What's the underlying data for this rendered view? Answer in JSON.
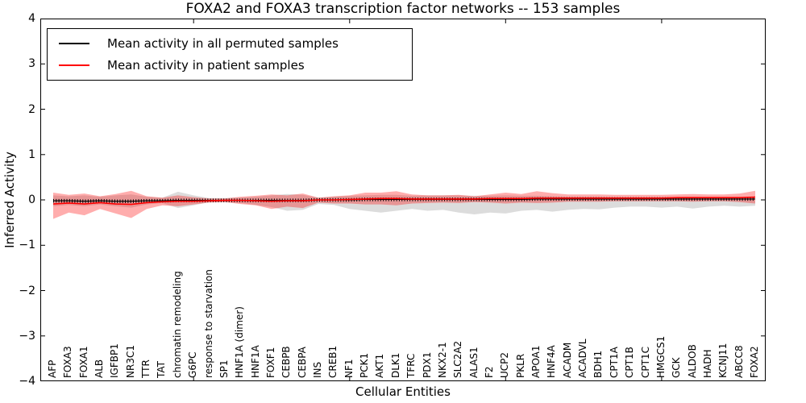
{
  "chart_data": {
    "type": "line",
    "title": "FOXA2 and FOXA3 transcription factor networks -- 153 samples",
    "xlabel": "Cellular Entities",
    "ylabel": "Inferred Activity",
    "ylim": [
      -4,
      4
    ],
    "yticks": [
      "4",
      "3",
      "2",
      "1",
      "0",
      "−1",
      "−2",
      "−3",
      "−4"
    ],
    "ytick_values": [
      4,
      3,
      2,
      1,
      0,
      -1,
      -2,
      -3,
      -4
    ],
    "xtick_indices": [
      9,
      19,
      29,
      39
    ],
    "grid": false,
    "legend_position": "upper left",
    "categories": [
      "AFP",
      "FOXA3",
      "FOXA1",
      "ALB",
      "IGFBP1",
      "NR3C1",
      "TTR",
      "TAT",
      "chromatin remodeling",
      "G6PC",
      "response to starvation",
      "SP1",
      "HNF1A (dimer)",
      "HNF1A",
      "FOXF1",
      "CEBPB",
      "CEBPA",
      "INS",
      "CREB1",
      "NF1",
      "PCK1",
      "AKT1",
      "DLK1",
      "TFRC",
      "PDX1",
      "NKX2-1",
      "SLC2A2",
      "ALAS1",
      "F2",
      "UCP2",
      "PKLR",
      "APOA1",
      "HNF4A",
      "ACADM",
      "ACADVL",
      "BDH1",
      "CPT1A",
      "CPT1B",
      "CPT1C",
      "HMGCS1",
      "GCK",
      "ALDOB",
      "HADH",
      "KCNJ11",
      "ABCC8",
      "FOXA2"
    ],
    "series": [
      {
        "name": "Mean activity in all permuted samples",
        "color": "#000000",
        "band_color": "#808080",
        "band_opacity": 0.28,
        "mean": [
          -0.02,
          -0.02,
          -0.03,
          -0.02,
          -0.03,
          -0.03,
          -0.02,
          -0.02,
          -0.01,
          -0.01,
          -0.01,
          -0.01,
          -0.01,
          -0.01,
          -0.01,
          -0.01,
          -0.01,
          0,
          0,
          0,
          0.01,
          0.01,
          0.01,
          0.01,
          0.01,
          0.01,
          0.01,
          0.01,
          0.01,
          0.01,
          0.01,
          0.02,
          0.02,
          0.02,
          0.02,
          0.02,
          0.02,
          0.02,
          0.02,
          0.02,
          0.02,
          0.02,
          0.02,
          0.02,
          0.02,
          0.02
        ],
        "upper": [
          0.1,
          0.08,
          0.1,
          0.07,
          0.1,
          0.12,
          0.07,
          0.05,
          0.18,
          0.1,
          0.04,
          0.04,
          0.05,
          0.07,
          0.1,
          0.13,
          0.11,
          0.05,
          0.07,
          0.09,
          0.1,
          0.11,
          0.11,
          0.09,
          0.1,
          0.1,
          0.1,
          0.09,
          0.09,
          0.1,
          0.09,
          0.09,
          0.08,
          0.07,
          0.07,
          0.07,
          0.06,
          0.06,
          0.06,
          0.06,
          0.06,
          0.07,
          0.06,
          0.06,
          0.06,
          0.06
        ],
        "lower": [
          -0.14,
          -0.11,
          -0.14,
          -0.1,
          -0.14,
          -0.17,
          -0.1,
          -0.07,
          -0.18,
          -0.12,
          -0.05,
          -0.05,
          -0.07,
          -0.11,
          -0.16,
          -0.24,
          -0.22,
          -0.09,
          -0.11,
          -0.2,
          -0.24,
          -0.28,
          -0.24,
          -0.2,
          -0.24,
          -0.22,
          -0.28,
          -0.32,
          -0.28,
          -0.3,
          -0.24,
          -0.22,
          -0.26,
          -0.22,
          -0.2,
          -0.21,
          -0.17,
          -0.15,
          -0.15,
          -0.17,
          -0.15,
          -0.19,
          -0.15,
          -0.13,
          -0.15,
          -0.13
        ]
      },
      {
        "name": "Mean activity in patient samples",
        "color": "#ff0000",
        "band_color": "#ff0000",
        "band_opacity": 0.32,
        "mean": [
          -0.09,
          -0.07,
          -0.09,
          -0.06,
          -0.09,
          -0.1,
          -0.06,
          -0.04,
          -0.03,
          -0.03,
          -0.02,
          -0.01,
          -0.01,
          -0.02,
          -0.03,
          -0.02,
          -0.02,
          0,
          0,
          0.01,
          0.02,
          0.03,
          0.03,
          0.02,
          0.02,
          0.02,
          0.02,
          0.02,
          0.03,
          0.03,
          0.03,
          0.04,
          0.04,
          0.04,
          0.04,
          0.04,
          0.04,
          0.04,
          0.04,
          0.04,
          0.05,
          0.05,
          0.05,
          0.05,
          0.05,
          0.06
        ],
        "upper": [
          0.16,
          0.11,
          0.14,
          0.08,
          0.13,
          0.2,
          0.08,
          0.05,
          0.1,
          0.06,
          0.03,
          0.03,
          0.07,
          0.09,
          0.12,
          0.1,
          0.14,
          0.05,
          0.08,
          0.1,
          0.16,
          0.16,
          0.19,
          0.12,
          0.1,
          0.1,
          0.11,
          0.08,
          0.12,
          0.16,
          0.13,
          0.19,
          0.15,
          0.12,
          0.12,
          0.12,
          0.11,
          0.11,
          0.11,
          0.11,
          0.12,
          0.13,
          0.12,
          0.12,
          0.14,
          0.2
        ],
        "lower": [
          -0.42,
          -0.28,
          -0.34,
          -0.2,
          -0.3,
          -0.4,
          -0.2,
          -0.12,
          -0.14,
          -0.1,
          -0.06,
          -0.05,
          -0.09,
          -0.12,
          -0.2,
          -0.15,
          -0.18,
          -0.06,
          -0.08,
          -0.08,
          -0.1,
          -0.1,
          -0.12,
          -0.08,
          -0.07,
          -0.06,
          -0.07,
          -0.05,
          -0.06,
          -0.08,
          -0.06,
          -0.07,
          -0.06,
          -0.04,
          -0.04,
          -0.04,
          -0.03,
          -0.03,
          -0.03,
          -0.03,
          -0.03,
          -0.04,
          -0.03,
          -0.03,
          -0.05,
          -0.08
        ]
      }
    ]
  }
}
